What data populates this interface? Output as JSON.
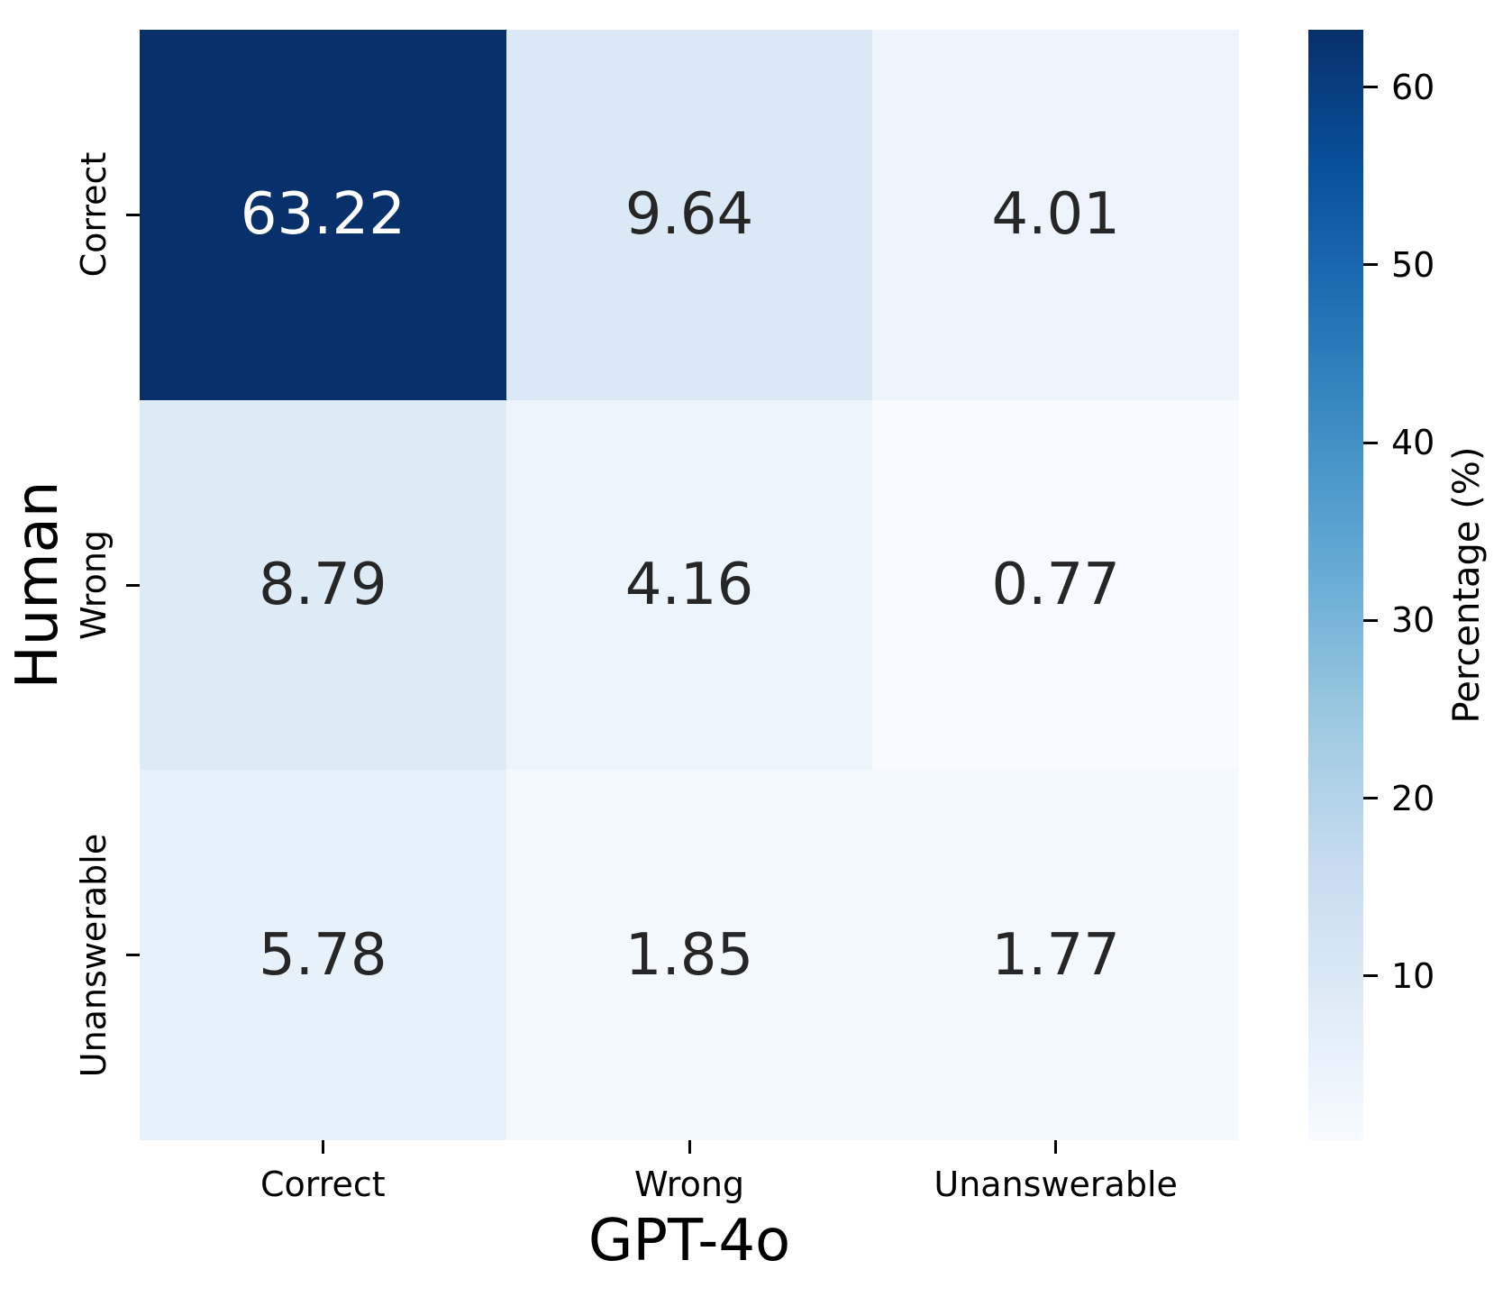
{
  "chart_data": {
    "type": "heatmap",
    "title": "",
    "xlabel": "GPT-4o",
    "ylabel": "Human",
    "x_categories": [
      "Correct",
      "Wrong",
      "Unanswerable"
    ],
    "y_categories": [
      "Correct",
      "Wrong",
      "Unanswerable"
    ],
    "values": [
      [
        63.22,
        9.64,
        4.01
      ],
      [
        8.79,
        4.16,
        0.77
      ],
      [
        5.78,
        1.85,
        1.77
      ]
    ],
    "cell_colors": [
      [
        "#08306b",
        "#dbe9f6",
        "#edf4fc"
      ],
      [
        "#ddebf7",
        "#ecf4fc",
        "#f7fbff"
      ],
      [
        "#e7f1fa",
        "#f4f9fe",
        "#f4f9fe"
      ]
    ],
    "annotation_text_colors": [
      [
        "#ffffff",
        "#262626",
        "#262626"
      ],
      [
        "#262626",
        "#262626",
        "#262626"
      ],
      [
        "#262626",
        "#262626",
        "#262626"
      ]
    ],
    "grid": false,
    "colorbar": {
      "label": "Percentage (%)",
      "position": "right",
      "vmin": 0.77,
      "vmax": 63.22,
      "ticks": [
        10,
        20,
        30,
        40,
        50,
        60
      ],
      "colormap": "Blues",
      "gradient_stops": [
        "#f7fbff",
        "#deebf7",
        "#c6dbef",
        "#9ecae1",
        "#6baed6",
        "#4292c6",
        "#2171b5",
        "#08519c",
        "#08306b"
      ]
    }
  }
}
